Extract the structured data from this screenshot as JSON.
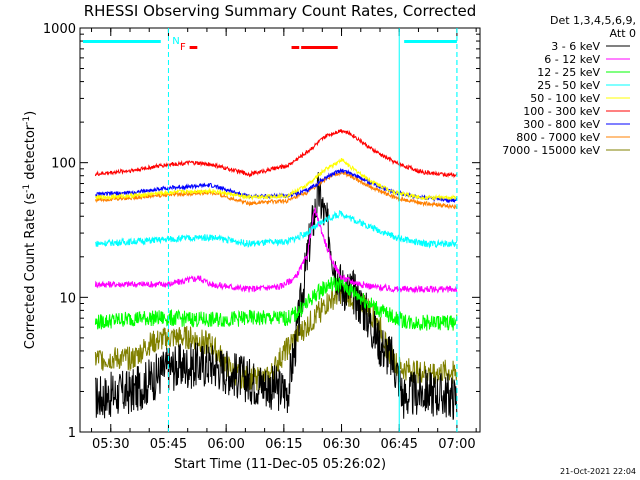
{
  "chart_data": {
    "type": "line",
    "title": "RHESSI Observing Summary Count Rates, Corrected",
    "xlabel": "Start Time (11-Dec-05 05:26:02)",
    "ylabel": "Corrected Count Rate (s",
    "ylabel_sup1": "-1",
    "ylabel_mid": " detector",
    "ylabel_sup2": "-1",
    "ylabel_end": ")",
    "y_scale": "log",
    "ylim": [
      1,
      1000
    ],
    "xlim_minutes": [
      -4,
      100
    ],
    "x_tick_labels": [
      "05:30",
      "05:45",
      "06:00",
      "06:15",
      "06:30",
      "06:45",
      "07:00"
    ],
    "x_tick_minutes": [
      4,
      19,
      34,
      49,
      64,
      79,
      94
    ],
    "y_tick_labels": [
      "1",
      "10",
      "100",
      "1000"
    ],
    "y_tick_values": [
      1,
      10,
      100,
      1000
    ],
    "legend": {
      "header1": "Det 1,3,4,5,6,9,",
      "header2": "Att 0",
      "placement": "right"
    },
    "series": [
      {
        "name": "3 - 6 keV",
        "color": "#000000",
        "x": [
          0,
          10,
          19,
          30,
          40,
          50,
          52,
          56,
          58,
          61,
          62,
          64,
          67,
          70,
          74,
          77,
          79,
          80,
          85,
          94
        ],
        "y": [
          1.8,
          2.0,
          3.0,
          3.2,
          2.4,
          2.0,
          4.5,
          30,
          60,
          28,
          18,
          12,
          11,
          8,
          4.5,
          3.5,
          2.5,
          1.8,
          2.0,
          1.8
        ]
      },
      {
        "name": "6 - 12 keV",
        "color": "#ff00ff",
        "x": [
          0,
          10,
          19,
          27,
          30,
          40,
          48,
          52,
          55,
          57,
          59,
          61,
          64,
          67,
          72,
          78,
          85,
          94
        ],
        "y": [
          12.5,
          12.5,
          12.5,
          14,
          12.5,
          11.5,
          12,
          14,
          20,
          45,
          30,
          20,
          14,
          13,
          12,
          11.5,
          11.5,
          11.5
        ]
      },
      {
        "name": "12 - 25 keV",
        "color": "#00ff00",
        "x": [
          0,
          10,
          19,
          30,
          40,
          50,
          52,
          55,
          58,
          61,
          64,
          67,
          70,
          74,
          78,
          82,
          94
        ],
        "y": [
          6.5,
          7.0,
          7.0,
          6.8,
          7.0,
          7.0,
          7.5,
          9,
          11,
          12.5,
          12.5,
          11,
          9.5,
          8.0,
          7.0,
          6.5,
          6.5
        ]
      },
      {
        "name": "25 - 50 keV",
        "color": "#00ffff",
        "x": [
          0,
          10,
          19,
          30,
          40,
          50,
          55,
          60,
          64,
          67,
          72,
          78,
          85,
          94
        ],
        "y": [
          25,
          26,
          27,
          28,
          25,
          26,
          30,
          38,
          42,
          38,
          33,
          28,
          25,
          25
        ]
      },
      {
        "name": "50 - 100 keV",
        "color": "#ffff00",
        "x": [
          0,
          10,
          19,
          30,
          40,
          50,
          55,
          60,
          64,
          67,
          72,
          78,
          85,
          94
        ],
        "y": [
          55,
          57,
          60,
          62,
          55,
          57,
          68,
          90,
          105,
          90,
          72,
          60,
          55,
          55
        ]
      },
      {
        "name": "100 - 300 keV",
        "color": "#ff0000",
        "x": [
          0,
          5,
          10,
          19,
          25,
          30,
          40,
          50,
          55,
          60,
          64,
          67,
          72,
          78,
          85,
          94
        ],
        "y": [
          82,
          85,
          88,
          97,
          100,
          97,
          82,
          95,
          120,
          158,
          175,
          160,
          125,
          100,
          85,
          80
        ]
      },
      {
        "name": "300 - 800 keV",
        "color": "#0000ff",
        "x": [
          0,
          10,
          19,
          30,
          40,
          50,
          55,
          60,
          64,
          67,
          72,
          78,
          85,
          94
        ],
        "y": [
          58,
          60,
          65,
          68,
          56,
          57,
          62,
          78,
          88,
          82,
          70,
          60,
          55,
          52
        ]
      },
      {
        "name": "800 - 7000 keV",
        "color": "#ff8000",
        "x": [
          0,
          10,
          19,
          30,
          40,
          50,
          55,
          60,
          64,
          67,
          72,
          78,
          85,
          94
        ],
        "y": [
          53,
          55,
          58,
          60,
          50,
          52,
          60,
          76,
          85,
          78,
          65,
          55,
          50,
          47
        ]
      },
      {
        "name": "7000 - 15000 keV",
        "color": "#808000",
        "x": [
          0,
          10,
          14,
          19,
          25,
          30,
          33,
          36,
          40,
          45,
          48,
          52,
          57,
          60,
          64,
          67,
          70,
          74,
          76,
          79,
          84,
          94
        ],
        "y": [
          3.5,
          3.5,
          4.5,
          5.0,
          5.0,
          4.5,
          3.5,
          2.7,
          2.5,
          2.5,
          3.5,
          5.0,
          7.0,
          9.0,
          11,
          10,
          9.0,
          6.0,
          4.0,
          3.0,
          2.8,
          2.8
        ]
      }
    ],
    "annotations": [
      {
        "text": "N",
        "color": "#00ffff",
        "x_minutes": 20
      },
      {
        "text": "F",
        "color": "#ff0000",
        "x_minutes": 22
      }
    ],
    "night_minutes": [
      [
        -4,
        19
      ],
      [
        79,
        94
      ]
    ],
    "flare_flag_minutes": [
      [
        24.5,
        26.5
      ],
      [
        51,
        53
      ],
      [
        53.5,
        63
      ]
    ],
    "night_bar_minutes": [
      [
        -4,
        17
      ],
      [
        79.5,
        94
      ]
    ],
    "timestamp": "21-Oct-2021 22:04"
  }
}
